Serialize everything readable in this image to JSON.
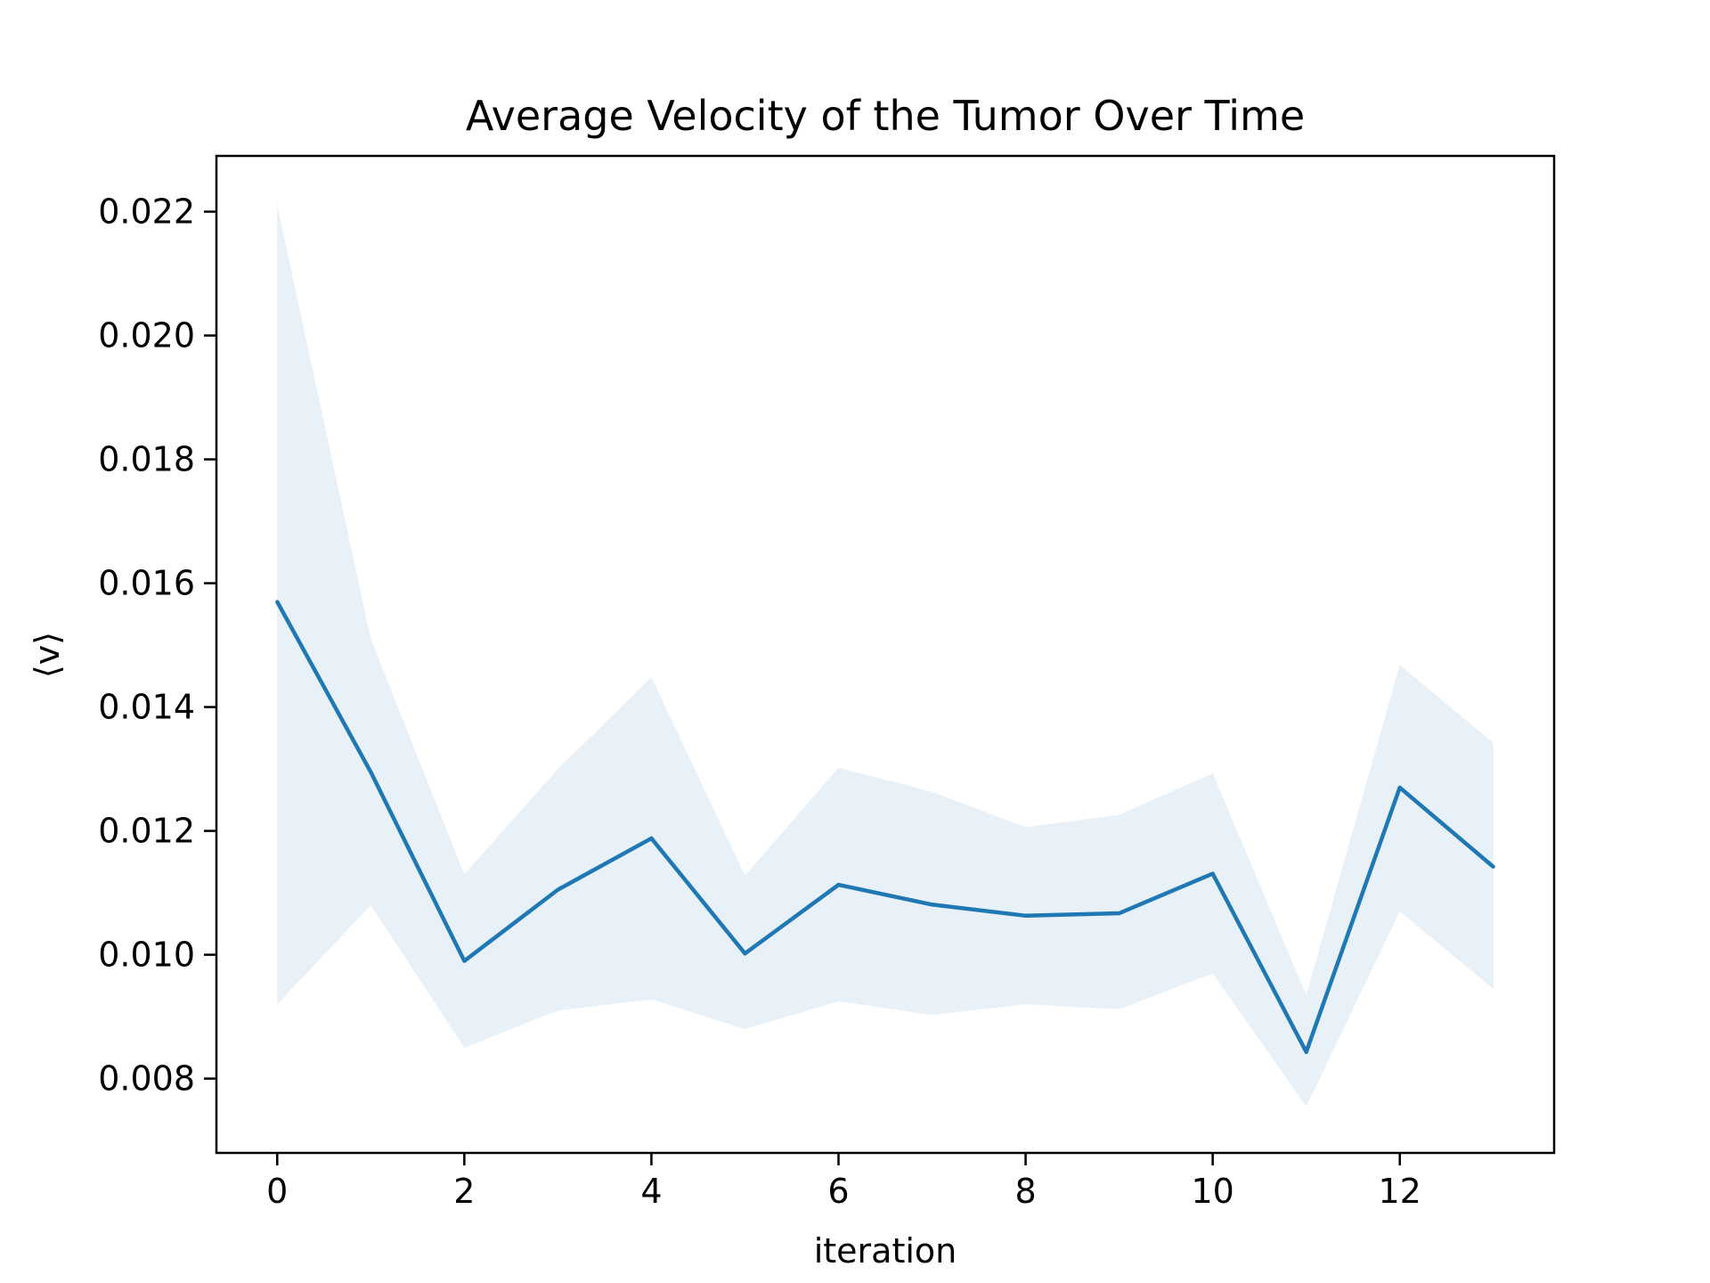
{
  "chart_data": {
    "type": "line",
    "title": "Average Velocity of the Tumor Over Time",
    "xlabel": "iteration",
    "ylabel": "⟨v⟩",
    "xlim": [
      -0.65,
      13.65
    ],
    "ylim": [
      0.0068,
      0.0229
    ],
    "x_ticks": [
      0,
      2,
      4,
      6,
      8,
      10,
      12
    ],
    "x_tick_labels": [
      "0",
      "2",
      "4",
      "6",
      "8",
      "10",
      "12"
    ],
    "y_ticks": [
      0.008,
      0.01,
      0.012,
      0.014,
      0.016,
      0.018,
      0.02,
      0.022
    ],
    "y_tick_labels": [
      "0.008",
      "0.010",
      "0.012",
      "0.014",
      "0.016",
      "0.018",
      "0.020",
      "0.022"
    ],
    "grid": false,
    "series": [
      {
        "x": [
          0,
          1,
          2,
          3,
          4,
          5,
          6,
          7,
          8,
          9,
          10,
          11,
          12,
          13
        ],
        "values": [
          0.0157,
          0.01295,
          0.0099,
          0.01105,
          0.01188,
          0.01002,
          0.01113,
          0.01081,
          0.01063,
          0.01067,
          0.01131,
          0.00843,
          0.0127,
          0.01142
        ],
        "upper": [
          0.0221,
          0.0151,
          0.0113,
          0.013,
          0.01448,
          0.01128,
          0.01302,
          0.01263,
          0.01206,
          0.01226,
          0.01293,
          0.00935,
          0.01468,
          0.01342
        ],
        "lower": [
          0.0092,
          0.0108,
          0.0085,
          0.0091,
          0.00928,
          0.0088,
          0.00925,
          0.00903,
          0.0092,
          0.00912,
          0.0097,
          0.00755,
          0.0107,
          0.00945
        ],
        "color": "#1f77b4",
        "band_color": "#1f77b4",
        "band_opacity": 0.1
      }
    ]
  },
  "colors": {
    "line": "#1f77b4",
    "axes": "#000000",
    "background": "#ffffff"
  }
}
